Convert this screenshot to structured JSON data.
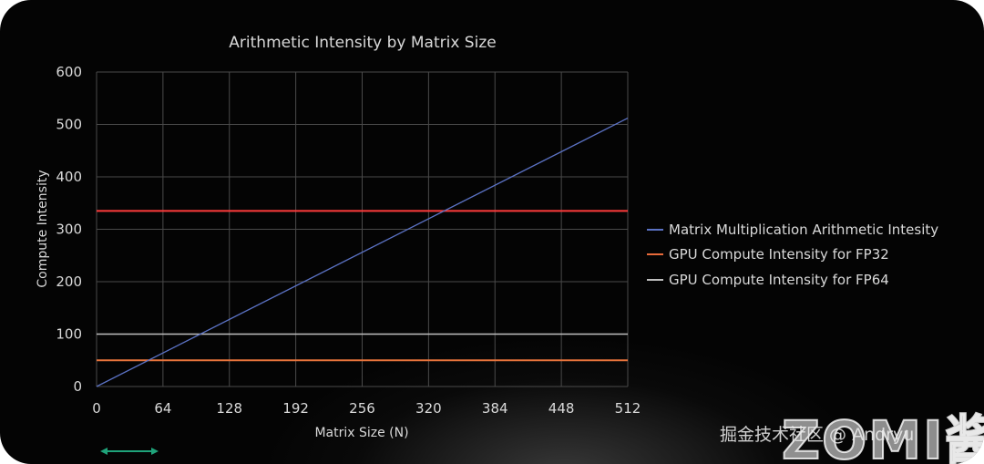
{
  "chart_data": {
    "type": "line",
    "title": "Arithmetic Intensity by Matrix Size",
    "xlabel": "Matrix Size (N)",
    "ylabel": "Compute Intensity",
    "xlim": [
      0,
      512
    ],
    "ylim": [
      0,
      600
    ],
    "xticks": [
      0,
      64,
      128,
      192,
      256,
      320,
      384,
      448,
      512
    ],
    "yticks": [
      0,
      100,
      200,
      300,
      400,
      500,
      600
    ],
    "grid": true,
    "legend_position": "right",
    "series": [
      {
        "name": "Matrix Multiplication Arithmetic Intesity",
        "color": "#5b72c4",
        "x": [
          0,
          512
        ],
        "y": [
          0,
          512
        ]
      },
      {
        "name": "GPU Compute Intensity for FP32",
        "color": "#e86a3a",
        "x": [
          0,
          512
        ],
        "y": [
          335,
          335
        ]
      },
      {
        "name": "GPU Compute Intensity for FP64",
        "color": "#bfbfbf",
        "x": [
          0,
          512
        ],
        "y": [
          100,
          100
        ]
      }
    ],
    "extra_lines": [
      {
        "color": "#ff3b3b",
        "x": [
          0,
          512
        ],
        "y": [
          335,
          335
        ]
      },
      {
        "color": "#e8743c",
        "x": [
          0,
          512
        ],
        "y": [
          50,
          50
        ]
      }
    ]
  },
  "watermark": {
    "text": "掘金技术社区 @ Andryu"
  },
  "logo": {
    "text": "ZOMI酱"
  },
  "scroll_hint_color": "#1fa37a"
}
